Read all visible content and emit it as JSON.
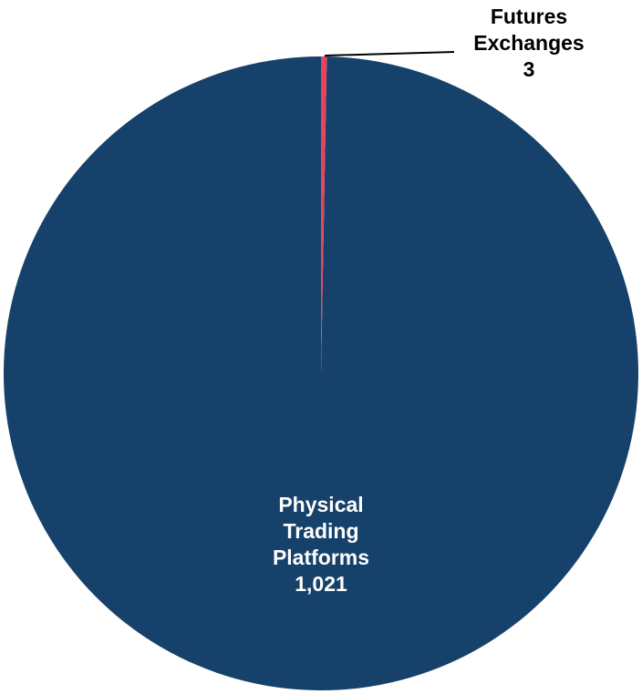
{
  "chart_data": {
    "type": "pie",
    "title": "",
    "slices": [
      {
        "name_lines": [
          "Physical",
          "Trading",
          "Platforms"
        ],
        "value": 1021,
        "value_label": "1,021",
        "color": "#16416a",
        "label_color": "#ffffff"
      },
      {
        "name_lines": [
          "Futures",
          "Exchanges"
        ],
        "value": 3,
        "value_label": "3",
        "color": "#e8435a",
        "label_color": "#000000"
      }
    ],
    "start_angle_deg": 0,
    "direction": "counterclockwise",
    "legend": "none"
  }
}
